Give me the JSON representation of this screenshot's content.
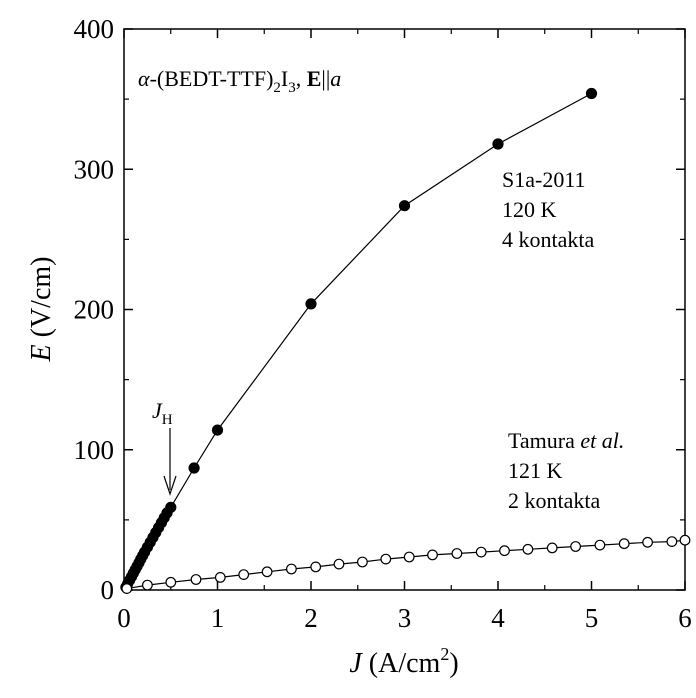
{
  "chart_data": {
    "type": "scatter",
    "title": "",
    "xlabel": {
      "symbol": "J",
      "unit_prefix": " (A/cm",
      "unit_sup": "2",
      "unit_suffix": ")"
    },
    "ylabel": {
      "symbol": "E",
      "unit": " (V/cm)"
    },
    "xlim": [
      0,
      6
    ],
    "ylim": [
      0,
      400
    ],
    "x_ticks": [
      "0",
      "1",
      "2",
      "3",
      "4",
      "5",
      "6"
    ],
    "y_ticks": [
      "0",
      "100",
      "200",
      "300",
      "400"
    ],
    "grid": false,
    "legend": "none",
    "series": [
      {
        "marker": "filled-circle",
        "color": "#000000",
        "x": [
          0.02,
          0.04,
          0.06,
          0.08,
          0.1,
          0.12,
          0.14,
          0.16,
          0.18,
          0.2,
          0.22,
          0.25,
          0.28,
          0.31,
          0.34,
          0.37,
          0.4,
          0.43,
          0.46,
          0.5,
          0.75,
          1.0,
          2.0,
          3.0,
          4.0,
          5.0
        ],
        "y": [
          2,
          4.5,
          7,
          9.5,
          12,
          14.5,
          17,
          19.5,
          22,
          24.5,
          27,
          30.5,
          34,
          37.5,
          41,
          44.5,
          48,
          51.5,
          55,
          59,
          87,
          114,
          204,
          274,
          318,
          354
        ]
      },
      {
        "marker": "open-circle",
        "color": "#000000",
        "x": [
          0.03,
          0.25,
          0.5,
          0.77,
          1.03,
          1.28,
          1.53,
          1.79,
          2.05,
          2.3,
          2.55,
          2.8,
          3.05,
          3.3,
          3.56,
          3.82,
          4.07,
          4.32,
          4.58,
          4.83,
          5.09,
          5.35,
          5.6,
          5.86,
          6.0
        ],
        "y": [
          1,
          3.5,
          5.5,
          7.5,
          9,
          11,
          13,
          15,
          16.5,
          18.5,
          20,
          22,
          23.5,
          25,
          26,
          27,
          28,
          29,
          30,
          31,
          32,
          33,
          34,
          34.5,
          35.5
        ]
      }
    ],
    "annotations": {
      "compound": {
        "alpha": "α",
        "name": "-(BEDT-TTF)",
        "sub2": "2",
        "iodine": "I",
        "sub3": "3",
        "sep": ", ",
        "field": "E",
        "parallel": "||",
        "axis": "a"
      },
      "sample": {
        "line1": "S1a-2011",
        "line2": "120 K",
        "line3": "4 kontakta"
      },
      "reference": {
        "author": "Tamura ",
        "etal": "et al.",
        "line2": "121 K",
        "line3": "2 kontakta"
      },
      "arrow_label": {
        "symbol": "J",
        "sub": "H"
      }
    }
  }
}
